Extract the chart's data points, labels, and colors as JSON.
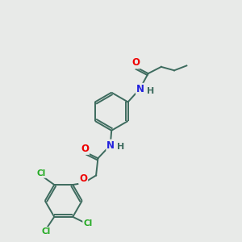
{
  "background_color": "#e8eae8",
  "bond_color": "#3d6b5e",
  "atom_colors": {
    "O": "#ee0000",
    "N": "#2222dd",
    "Cl": "#22aa22",
    "C": "#3d6b5e",
    "H": "#3d6b5e"
  },
  "figsize": [
    3.0,
    3.0
  ],
  "dpi": 100
}
